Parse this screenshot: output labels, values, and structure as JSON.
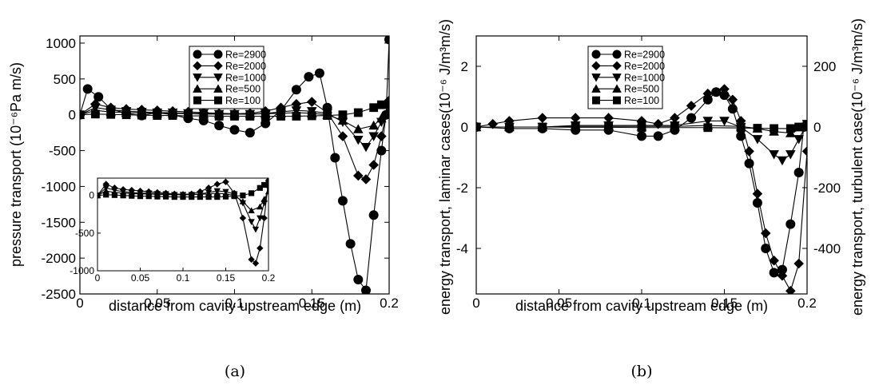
{
  "chart_data": [
    {
      "id": "a",
      "type": "line",
      "caption": "(a)",
      "xlabel": "distance from cavity upstream edge (m)",
      "ylabel": "pressure transport (10⁻⁶Pa m/s)",
      "xlim": [
        0,
        0.2
      ],
      "ylim": [
        -2500,
        1100
      ],
      "xticks": [
        "0",
        "0.05",
        "0.1",
        "0.15",
        "0.2"
      ],
      "xtick_values": [
        0,
        0.05,
        0.1,
        0.15,
        0.2
      ],
      "yticks": [
        "1000",
        "500",
        "0",
        "-500",
        "-1000",
        "-1500",
        "-2000",
        "-2500"
      ],
      "ytick_values": [
        1000,
        500,
        0,
        -500,
        -1000,
        -1500,
        -2000,
        -2500
      ],
      "legend_position": "top-center",
      "series": [
        {
          "name": "Re=2900",
          "marker": "circle",
          "x": [
            0,
            0.005,
            0.012,
            0.02,
            0.03,
            0.04,
            0.05,
            0.06,
            0.07,
            0.08,
            0.09,
            0.1,
            0.11,
            0.12,
            0.13,
            0.14,
            0.148,
            0.155,
            0.16,
            0.165,
            0.17,
            0.175,
            0.18,
            0.185,
            0.19,
            0.195,
            0.198,
            0.2
          ],
          "y": [
            0,
            360,
            250,
            80,
            20,
            -10,
            30,
            0,
            -50,
            -80,
            -150,
            -210,
            -250,
            -120,
            60,
            350,
            530,
            580,
            100,
            -600,
            -1200,
            -1800,
            -2300,
            -2450,
            -1400,
            -500,
            0,
            1050
          ]
        },
        {
          "name": "Re=2000",
          "marker": "diamond",
          "x": [
            0,
            0.01,
            0.02,
            0.03,
            0.04,
            0.05,
            0.06,
            0.07,
            0.08,
            0.09,
            0.1,
            0.11,
            0.12,
            0.13,
            0.14,
            0.15,
            0.16,
            0.17,
            0.18,
            0.185,
            0.19,
            0.195,
            0.2
          ],
          "y": [
            0,
            150,
            100,
            80,
            70,
            60,
            50,
            40,
            30,
            20,
            15,
            20,
            50,
            100,
            150,
            180,
            30,
            -300,
            -850,
            -900,
            -700,
            -300,
            200
          ]
        },
        {
          "name": "Re=1000",
          "marker": "triangle-down",
          "x": [
            0,
            0.01,
            0.02,
            0.03,
            0.04,
            0.05,
            0.06,
            0.07,
            0.08,
            0.09,
            0.1,
            0.11,
            0.12,
            0.13,
            0.14,
            0.15,
            0.16,
            0.17,
            0.18,
            0.185,
            0.19,
            0.195,
            0.2
          ],
          "y": [
            0,
            100,
            70,
            50,
            40,
            30,
            30,
            20,
            20,
            10,
            10,
            10,
            20,
            40,
            60,
            50,
            20,
            -100,
            -350,
            -450,
            -300,
            -100,
            100
          ]
        },
        {
          "name": "Re=500",
          "marker": "triangle-up",
          "x": [
            0,
            0.01,
            0.02,
            0.03,
            0.04,
            0.05,
            0.06,
            0.07,
            0.08,
            0.09,
            0.1,
            0.11,
            0.12,
            0.13,
            0.14,
            0.15,
            0.16,
            0.17,
            0.18,
            0.19,
            0.195,
            0.2
          ],
          "y": [
            0,
            60,
            40,
            30,
            25,
            20,
            20,
            15,
            10,
            10,
            10,
            10,
            15,
            20,
            30,
            20,
            0,
            -80,
            -200,
            -150,
            -50,
            50
          ]
        },
        {
          "name": "Re=100",
          "marker": "square",
          "x": [
            0,
            0.01,
            0.02,
            0.03,
            0.04,
            0.05,
            0.06,
            0.07,
            0.08,
            0.09,
            0.1,
            0.11,
            0.12,
            0.13,
            0.14,
            0.15,
            0.16,
            0.17,
            0.18,
            0.19,
            0.195,
            0.2
          ],
          "y": [
            0,
            10,
            5,
            0,
            -5,
            -10,
            -10,
            -15,
            -15,
            -20,
            -20,
            -20,
            -20,
            -20,
            -20,
            -15,
            -10,
            0,
            30,
            100,
            140,
            150
          ]
        }
      ],
      "inset": {
        "xlim": [
          0,
          0.2
        ],
        "ylim": [
          -1000,
          230
        ],
        "xticks": [
          "0",
          "0.05",
          "0.1",
          "0.15",
          "0.2"
        ],
        "xtick_values": [
          0,
          0.05,
          0.1,
          0.15,
          0.2
        ],
        "yticks": [
          "0",
          "-500",
          "-1000"
        ],
        "ytick_values": [
          0,
          -500,
          -1000
        ],
        "series": [
          {
            "name": "Re=2000",
            "marker": "diamond",
            "x": [
              0,
              0.01,
              0.02,
              0.03,
              0.04,
              0.05,
              0.06,
              0.07,
              0.08,
              0.09,
              0.1,
              0.11,
              0.12,
              0.13,
              0.14,
              0.15,
              0.16,
              0.17,
              0.18,
              0.185,
              0.19,
              0.195,
              0.2
            ],
            "y": [
              0,
              150,
              100,
              80,
              70,
              60,
              50,
              40,
              30,
              20,
              15,
              20,
              50,
              100,
              150,
              180,
              30,
              -300,
              -850,
              -900,
              -700,
              -300,
              200
            ]
          },
          {
            "name": "Re=1000",
            "marker": "triangle-down",
            "x": [
              0,
              0.01,
              0.02,
              0.03,
              0.04,
              0.05,
              0.06,
              0.07,
              0.08,
              0.09,
              0.1,
              0.11,
              0.12,
              0.13,
              0.14,
              0.15,
              0.16,
              0.17,
              0.18,
              0.185,
              0.19,
              0.195,
              0.2
            ],
            "y": [
              0,
              100,
              70,
              50,
              40,
              30,
              30,
              20,
              20,
              10,
              10,
              10,
              20,
              40,
              60,
              50,
              20,
              -100,
              -350,
              -450,
              -300,
              -100,
              100
            ]
          },
          {
            "name": "Re=500",
            "marker": "triangle-up",
            "x": [
              0,
              0.01,
              0.02,
              0.03,
              0.04,
              0.05,
              0.06,
              0.07,
              0.08,
              0.09,
              0.1,
              0.11,
              0.12,
              0.13,
              0.14,
              0.15,
              0.16,
              0.17,
              0.18,
              0.19,
              0.195,
              0.2
            ],
            "y": [
              0,
              60,
              40,
              30,
              25,
              20,
              20,
              15,
              10,
              10,
              10,
              10,
              15,
              20,
              30,
              20,
              0,
              -80,
              -200,
              -150,
              -50,
              50
            ]
          },
          {
            "name": "Re=100",
            "marker": "square",
            "x": [
              0,
              0.01,
              0.02,
              0.03,
              0.04,
              0.05,
              0.06,
              0.07,
              0.08,
              0.09,
              0.1,
              0.11,
              0.12,
              0.13,
              0.14,
              0.15,
              0.16,
              0.17,
              0.18,
              0.19,
              0.195,
              0.2
            ],
            "y": [
              0,
              10,
              5,
              0,
              -5,
              -10,
              -10,
              -15,
              -15,
              -20,
              -20,
              -20,
              -20,
              -20,
              -20,
              -15,
              -10,
              0,
              30,
              100,
              140,
              150
            ]
          }
        ]
      }
    },
    {
      "id": "b",
      "type": "line",
      "caption": "(b)",
      "xlabel": "distance from cavity upstream edge (m)",
      "ylabel": "energy transport, laminar cases(10⁻⁶ J/m³m/s)",
      "ylabel_right": "energy transport, turbulent case(10⁻⁶ J/m³m/s)",
      "xlim": [
        0,
        0.2
      ],
      "ylim": [
        -5.5,
        3
      ],
      "ylim_right": [
        -550,
        300
      ],
      "xticks": [
        "0",
        "0.05",
        "0.1",
        "0.15",
        "0.2"
      ],
      "xtick_values": [
        0,
        0.05,
        0.1,
        0.15,
        0.2
      ],
      "yticks": [
        "2",
        "0",
        "-2",
        "-4"
      ],
      "ytick_values": [
        2,
        0,
        -2,
        -4
      ],
      "yticks_right": [
        "200",
        "0",
        "-200",
        "-400"
      ],
      "ytick_values_right": [
        200,
        0,
        -200,
        -400
      ],
      "legend_position": "top-center",
      "series": [
        {
          "name": "Re=2900",
          "marker": "circle",
          "x": [
            0,
            0.02,
            0.04,
            0.06,
            0.08,
            0.1,
            0.11,
            0.12,
            0.13,
            0.14,
            0.145,
            0.15,
            0.155,
            0.16,
            0.165,
            0.17,
            0.175,
            0.18,
            0.185,
            0.19,
            0.195,
            0.198
          ],
          "y": [
            0,
            -0.05,
            -0.05,
            -0.1,
            -0.1,
            -0.3,
            -0.3,
            -0.1,
            0.3,
            0.9,
            1.15,
            1.05,
            0.6,
            -0.3,
            -1.2,
            -2.5,
            -4.0,
            -4.8,
            -4.7,
            -3.2,
            -1.5,
            0
          ]
        },
        {
          "name": "Re=2000",
          "marker": "diamond",
          "x": [
            0,
            0.01,
            0.02,
            0.04,
            0.06,
            0.08,
            0.1,
            0.11,
            0.12,
            0.13,
            0.14,
            0.15,
            0.155,
            0.16,
            0.165,
            0.17,
            0.175,
            0.18,
            0.185,
            0.19,
            0.195,
            0.2
          ],
          "y": [
            0,
            0.1,
            0.2,
            0.3,
            0.3,
            0.3,
            0.2,
            0.1,
            0.3,
            0.7,
            1.1,
            1.25,
            0.9,
            0.2,
            -0.8,
            -2.2,
            -3.5,
            -4.4,
            -4.9,
            -5.4,
            -4.5,
            -0.8
          ]
        },
        {
          "name": "Re=1000",
          "marker": "triangle-down",
          "x": [
            0,
            0.02,
            0.04,
            0.06,
            0.08,
            0.1,
            0.12,
            0.14,
            0.15,
            0.16,
            0.17,
            0.18,
            0.185,
            0.19,
            0.195,
            0.2
          ],
          "y": [
            0,
            0,
            0,
            0.05,
            0.05,
            0.05,
            0.05,
            0.2,
            0.2,
            0,
            -0.4,
            -0.9,
            -1.1,
            -0.9,
            -0.4,
            0.1
          ]
        },
        {
          "name": "Re=500",
          "marker": "triangle-up",
          "x": [
            0,
            0.02,
            0.04,
            0.06,
            0.08,
            0.1,
            0.12,
            0.14,
            0.16,
            0.17,
            0.18,
            0.19,
            0.2
          ],
          "y": [
            0,
            0,
            0,
            0.02,
            0.02,
            0.02,
            0.02,
            0.05,
            0.02,
            -0.05,
            -0.15,
            -0.2,
            0
          ]
        },
        {
          "name": "Re=100",
          "marker": "square",
          "x": [
            0,
            0.02,
            0.04,
            0.06,
            0.08,
            0.1,
            0.12,
            0.14,
            0.16,
            0.17,
            0.18,
            0.19,
            0.195,
            0.2
          ],
          "y": [
            0,
            0,
            0,
            -0.01,
            -0.01,
            -0.02,
            -0.02,
            -0.02,
            -0.03,
            -0.04,
            -0.05,
            -0.05,
            0,
            0.05
          ]
        }
      ]
    }
  ]
}
